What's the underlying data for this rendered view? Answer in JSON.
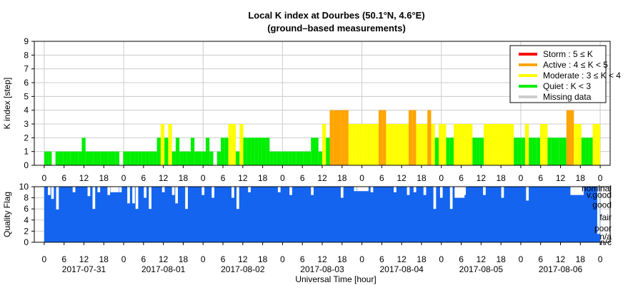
{
  "title_line1": "Local K index at Dourbes (50.1°N, 4.6°E)",
  "title_line2": "(ground–based measurements)",
  "colors": {
    "storm": "#ff0000",
    "active": "#ffa500",
    "moderate": "#ffff00",
    "quiet": "#00ee00",
    "missing": "#cccccc",
    "quality": "#1464f0"
  },
  "legend": [
    {
      "label": "Storm : 5 ≤ K",
      "color": "#ff0000"
    },
    {
      "label": "Active : 4 ≤ K < 5",
      "color": "#ffa500"
    },
    {
      "label": "Moderate : 3 ≤ K < 4",
      "color": "#ffff00"
    },
    {
      "label": "Quiet : K < 3",
      "color": "#00ee00"
    },
    {
      "label": "Missing data",
      "color": "#cccccc"
    }
  ],
  "chart_data": [
    {
      "type": "bar",
      "title": "Local K index at Dourbes (50.1°N, 4.6°E)",
      "subtitle": "(ground–based measurements)",
      "ylabel": "K index [step]",
      "ylim": [
        0,
        9
      ],
      "yticks": [
        "0",
        "1",
        "2",
        "3",
        "4",
        "5",
        "6",
        "7",
        "8",
        "9"
      ],
      "xlim_hours": [
        -3,
        171
      ],
      "hour_tick_labels": [
        "0",
        "6",
        "12",
        "18",
        "0",
        "6",
        "12",
        "18",
        "0",
        "6",
        "12",
        "18",
        "0",
        "6",
        "12",
        "18",
        "0",
        "6",
        "12",
        "18",
        "0",
        "6",
        "12",
        "18",
        "0",
        "6",
        "12",
        "18",
        "0"
      ],
      "grid": true,
      "legend_position": "top-right",
      "bar_width_hours": 1.5,
      "k_values": [
        1,
        1,
        0,
        1,
        1,
        1,
        1,
        1,
        1,
        1,
        2,
        1,
        1,
        1,
        1,
        1,
        1,
        1,
        1,
        1,
        0,
        1,
        1,
        1,
        1,
        1,
        1,
        1,
        1,
        1,
        2,
        3,
        2,
        3,
        1,
        2,
        1,
        1,
        1,
        2,
        1,
        1,
        1,
        2,
        1,
        0,
        1,
        2,
        2,
        3,
        3,
        1,
        3,
        2,
        2,
        2,
        2,
        2,
        2,
        2,
        1,
        1,
        1,
        1,
        1,
        1,
        1,
        1,
        1,
        1,
        1,
        2,
        2,
        1,
        3,
        2,
        4,
        4,
        4,
        4,
        4,
        3,
        3,
        3,
        3,
        3,
        3,
        3,
        3,
        4,
        4,
        3,
        3,
        3,
        3,
        3,
        3,
        4,
        4,
        3,
        3,
        3,
        4,
        3,
        2,
        3,
        3,
        2,
        2,
        3,
        3,
        3,
        3,
        3,
        2,
        2,
        2,
        3,
        3,
        3,
        3,
        3,
        3,
        3,
        3,
        2,
        2,
        2,
        3,
        2,
        2,
        2,
        3,
        3,
        2,
        2,
        2,
        2,
        2,
        4,
        4,
        3,
        3,
        2,
        2,
        2,
        3,
        3
      ]
    },
    {
      "type": "area",
      "ylabel": "Quality Flag",
      "ylim": [
        0,
        10
      ],
      "yticks": [
        "0",
        "2",
        "4",
        "6",
        "8",
        "10"
      ],
      "quality_labels": [
        "nominal",
        "v.good",
        "good",
        "fair",
        "poor",
        "n/a",
        "n/c"
      ],
      "xlabel": "Universal Time [hour]",
      "day_labels": [
        "2017-07-31",
        "2017-08-01",
        "2017-08-02",
        "2017-08-03",
        "2017-08-04",
        "2017-08-05",
        "2017-08-06"
      ],
      "hour_tick_labels": [
        "0",
        "6",
        "12",
        "18",
        "0",
        "6",
        "12",
        "18",
        "0",
        "6",
        "12",
        "18",
        "0",
        "6",
        "12",
        "18",
        "0",
        "6",
        "12",
        "18",
        "0",
        "6",
        "12",
        "18",
        "0",
        "6",
        "12",
        "18",
        "0"
      ],
      "full_value": 10,
      "dips": [
        {
          "hour": 1.5,
          "value": 8.5
        },
        {
          "hour": 2.5,
          "value": 7.8
        },
        {
          "hour": 4.0,
          "value": 5.9
        },
        {
          "hour": 9.0,
          "value": 9.0
        },
        {
          "hour": 13.5,
          "value": 8.3
        },
        {
          "hour": 15.0,
          "value": 6.0
        },
        {
          "hour": 16.5,
          "value": 9.0
        },
        {
          "hour": 19.5,
          "value": 8.5
        },
        {
          "hour": 23.0,
          "value": 9.0
        },
        {
          "hour": 25.5,
          "value": 7.0
        },
        {
          "hour": 27.0,
          "value": 7.0
        },
        {
          "hour": 28.0,
          "value": 6.0
        },
        {
          "hour": 30.5,
          "value": 8.0
        },
        {
          "hour": 32.0,
          "value": 6.0
        },
        {
          "hour": 36.0,
          "value": 9.0
        },
        {
          "hour": 39.0,
          "value": 8.5
        },
        {
          "hour": 40.0,
          "value": 7.0
        },
        {
          "hour": 43.0,
          "value": 6.0
        },
        {
          "hour": 48.0,
          "value": 8.5
        },
        {
          "hour": 51.0,
          "value": 8.0
        },
        {
          "hour": 57.0,
          "value": 8.0
        },
        {
          "hour": 58.5,
          "value": 6.0
        },
        {
          "hour": 62.0,
          "value": 9.0
        },
        {
          "hour": 71.0,
          "value": 9.0
        },
        {
          "hour": 74.5,
          "value": 8.5
        },
        {
          "hour": 81.0,
          "value": 8.5
        },
        {
          "hour": 90.0,
          "value": 8.0
        },
        {
          "hour": 94.0,
          "value": 9.2
        },
        {
          "hour": 99.0,
          "value": 9.0
        },
        {
          "hour": 106.0,
          "value": 9.0
        },
        {
          "hour": 110.0,
          "value": 8.5
        },
        {
          "hour": 112.0,
          "value": 9.0
        },
        {
          "hour": 115.0,
          "value": 8.5
        },
        {
          "hour": 118.0,
          "value": 6.0
        },
        {
          "hour": 120.0,
          "value": 8.0
        },
        {
          "hour": 123.0,
          "value": 6.0
        },
        {
          "hour": 127.0,
          "value": 8.5
        },
        {
          "hour": 133.0,
          "value": 8.5
        },
        {
          "hour": 138.5,
          "value": 8.0
        },
        {
          "hour": 146.0,
          "value": 7.5
        },
        {
          "hour": 167.5,
          "value": 1.5
        }
      ],
      "wide_dips": [
        {
          "from": 20.0,
          "to": 22.5,
          "value": 9.0
        },
        {
          "from": 94.5,
          "to": 98.0,
          "value": 9.2
        },
        {
          "from": 124.0,
          "to": 127.0,
          "value": 8.0
        },
        {
          "from": 159.0,
          "to": 163.0,
          "value": 8.5
        }
      ]
    }
  ]
}
